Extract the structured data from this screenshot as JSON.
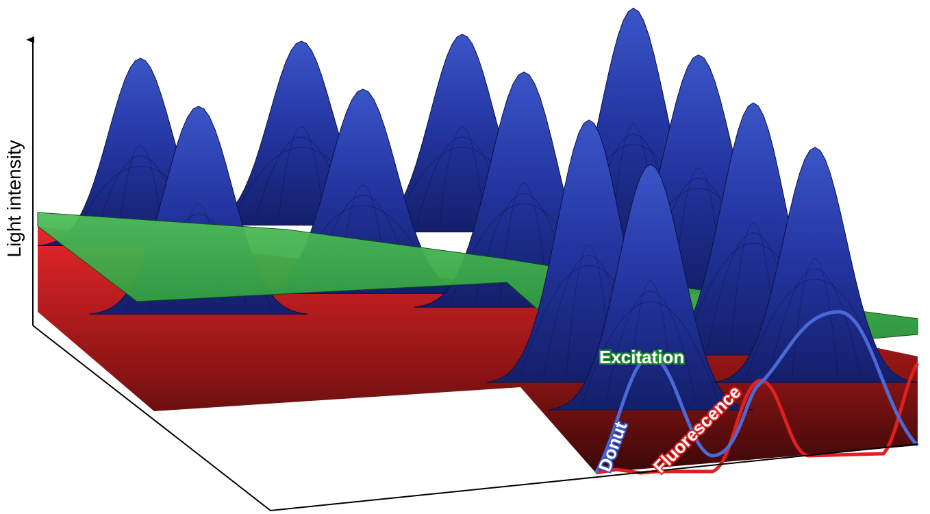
{
  "axis_label": "Light intensity",
  "labels": {
    "excitation": "Excitation",
    "donut": "Donut",
    "fluorescence": "Fluorescence"
  }
}
